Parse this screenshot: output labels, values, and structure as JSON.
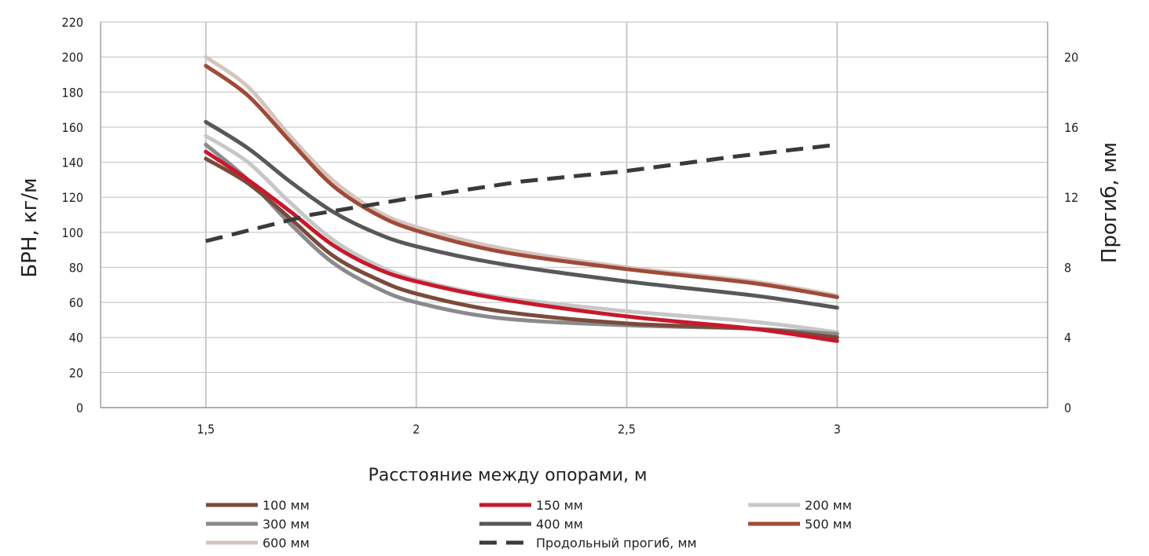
{
  "chart_data": {
    "type": "line",
    "title": "",
    "xlabel": "Расстояние между опорами, м",
    "ylabel": "БРН, кг/м",
    "y2label": "Прогиб, мм",
    "xlim": [
      1.25,
      3.5
    ],
    "ylim": [
      0,
      220
    ],
    "y2lim": [
      0,
      22
    ],
    "x_ticks": [
      1.5,
      2,
      2.5,
      3
    ],
    "x_tick_labels": [
      "1,5",
      "2",
      "2,5",
      "3"
    ],
    "y_ticks": [
      0,
      20,
      40,
      60,
      80,
      100,
      120,
      140,
      160,
      180,
      200,
      220
    ],
    "y_tick_labels": [
      "0",
      "20",
      "40",
      "60",
      "80",
      "100",
      "120",
      "140",
      "160",
      "180",
      "200",
      "220"
    ],
    "y2_ticks": [
      0,
      4,
      8,
      12,
      16,
      20
    ],
    "y2_tick_labels": [
      "0",
      "4",
      "8",
      "12",
      "16",
      "20"
    ],
    "grid": "vertical at x ticks, horizontal at left y ticks",
    "legend_position": "bottom",
    "series": [
      {
        "name": "100 мм",
        "color": "#7a4a3a",
        "axis": "left",
        "dashed": false,
        "x": [
          1.5,
          1.6,
          1.7,
          1.8,
          1.9,
          2.0,
          2.2,
          2.5,
          2.8,
          3.0
        ],
        "y": [
          142,
          128,
          108,
          87,
          74,
          65,
          55,
          48,
          45,
          40
        ]
      },
      {
        "name": "150 мм",
        "color": "#c8182c",
        "axis": "left",
        "dashed": false,
        "x": [
          1.5,
          1.6,
          1.7,
          1.8,
          1.9,
          2.0,
          2.2,
          2.5,
          2.8,
          3.0
        ],
        "y": [
          146,
          130,
          112,
          93,
          80,
          72,
          62,
          52,
          45,
          38
        ]
      },
      {
        "name": "200 мм",
        "color": "#c7c7c7",
        "axis": "left",
        "dashed": false,
        "x": [
          1.5,
          1.6,
          1.7,
          1.8,
          1.9,
          2.0,
          2.2,
          2.5,
          2.8,
          3.0
        ],
        "y": [
          155,
          140,
          117,
          96,
          82,
          73,
          63,
          55,
          49,
          43
        ]
      },
      {
        "name": "300 мм",
        "color": "#8a8a8c",
        "axis": "left",
        "dashed": false,
        "x": [
          1.5,
          1.6,
          1.7,
          1.8,
          1.9,
          2.0,
          2.2,
          2.5,
          2.8,
          3.0
        ],
        "y": [
          150,
          130,
          105,
          83,
          69,
          60,
          51,
          47,
          45,
          42
        ]
      },
      {
        "name": "400 мм",
        "color": "#58585a",
        "axis": "left",
        "dashed": false,
        "x": [
          1.5,
          1.6,
          1.7,
          1.8,
          1.9,
          2.0,
          2.2,
          2.5,
          2.8,
          3.0
        ],
        "y": [
          163,
          148,
          129,
          112,
          100,
          92,
          82,
          72,
          64,
          57
        ]
      },
      {
        "name": "500 мм",
        "color": "#a04a38",
        "axis": "left",
        "dashed": false,
        "x": [
          1.5,
          1.6,
          1.7,
          1.8,
          1.9,
          2.0,
          2.2,
          2.5,
          2.8,
          3.0
        ],
        "y": [
          195,
          178,
          152,
          127,
          111,
          101,
          89,
          79,
          71,
          63
        ]
      },
      {
        "name": "600 мм",
        "color": "#d6c4bf",
        "axis": "left",
        "dashed": false,
        "x": [
          1.5,
          1.6,
          1.7,
          1.8,
          1.9,
          2.0,
          2.2,
          2.5,
          2.8,
          3.0
        ],
        "y": [
          200,
          183,
          155,
          130,
          113,
          103,
          91,
          80,
          72,
          64
        ]
      },
      {
        "name": "Продольный прогиб, мм",
        "color": "#3a3a3a",
        "axis": "right",
        "dashed": true,
        "x": [
          1.5,
          1.75,
          2.0,
          2.25,
          2.5,
          2.75,
          3.0
        ],
        "y": [
          9.5,
          11.0,
          12.0,
          12.9,
          13.5,
          14.3,
          15.0
        ]
      }
    ],
    "legend_order": [
      [
        "100 мм",
        "150 мм",
        "200 мм"
      ],
      [
        "300 мм",
        "400 мм",
        "500 мм"
      ],
      [
        "600 мм",
        "Продольный прогиб, мм"
      ]
    ]
  }
}
